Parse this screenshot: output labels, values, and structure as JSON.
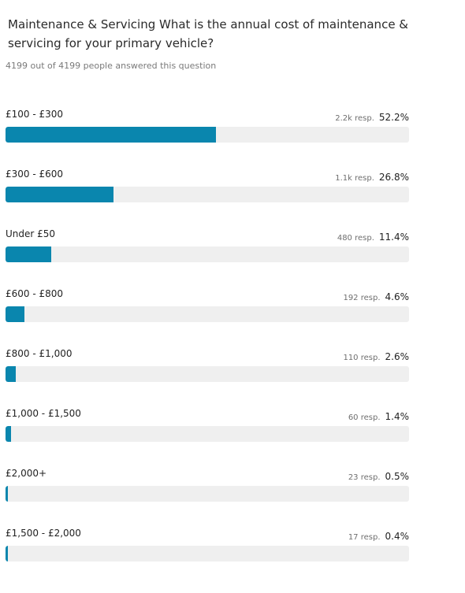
{
  "question": {
    "title": "Maintenance & Servicing What is the annual cost of maintenance & servicing for your primary vehicle?",
    "answered_text": "4199 out of 4199 people answered this question"
  },
  "colors": {
    "bar_fill": "#0a86ae",
    "bar_track": "#efefef"
  },
  "results": [
    {
      "label": "£100 - £300",
      "responses": "2.2k resp.",
      "percent": "52.2%",
      "fraction": 0.522
    },
    {
      "label": "£300 - £600",
      "responses": "1.1k resp.",
      "percent": "26.8%",
      "fraction": 0.268
    },
    {
      "label": "Under £50",
      "responses": "480 resp.",
      "percent": "11.4%",
      "fraction": 0.114
    },
    {
      "label": "£600 - £800",
      "responses": "192 resp.",
      "percent": "4.6%",
      "fraction": 0.046
    },
    {
      "label": "£800 - £1,000",
      "responses": "110 resp.",
      "percent": "2.6%",
      "fraction": 0.026
    },
    {
      "label": "£1,000 - £1,500",
      "responses": "60 resp.",
      "percent": "1.4%",
      "fraction": 0.014
    },
    {
      "label": "£2,000+",
      "responses": "23 resp.",
      "percent": "0.5%",
      "fraction": 0.005
    },
    {
      "label": "£1,500 - £2,000",
      "responses": "17 resp.",
      "percent": "0.4%",
      "fraction": 0.004
    }
  ]
}
